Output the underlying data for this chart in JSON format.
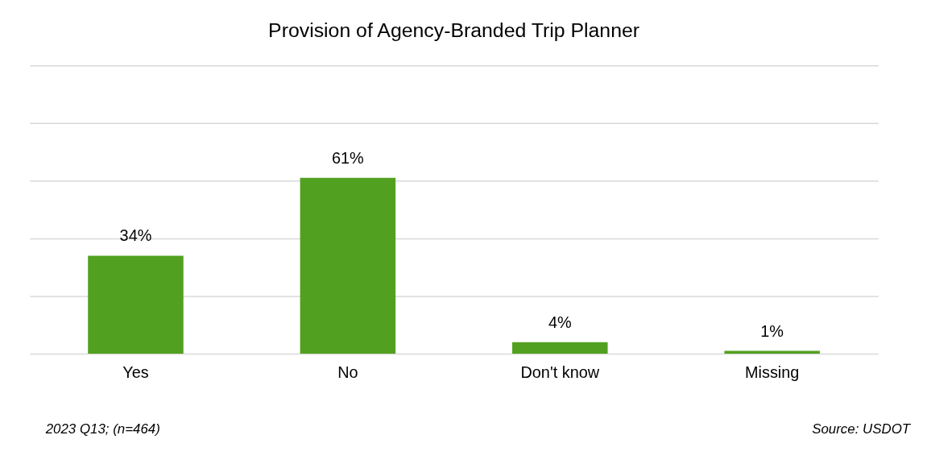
{
  "chart_data": {
    "type": "bar",
    "title": "Provision of Agency-Branded Trip Planner",
    "categories": [
      "Yes",
      "No",
      "Don't know",
      "Missing"
    ],
    "values": [
      34,
      61,
      4,
      1
    ],
    "color": "#52a020",
    "value_labels": [
      "34%",
      "61%",
      "4%",
      "1%"
    ],
    "ylim": [
      0,
      100
    ],
    "yticks": [
      {
        "value": 0,
        "label": null
      },
      {
        "value": 20,
        "label": null
      },
      {
        "value": 40,
        "label": null
      },
      {
        "value": 60,
        "label": null
      },
      {
        "value": 80,
        "label": null
      },
      {
        "value": 100,
        "label": null
      }
    ],
    "tick_labels": "x",
    "grid": "y",
    "annotations": [
      "2023 Q13; (n=464)",
      "Source: USDOT"
    ]
  }
}
